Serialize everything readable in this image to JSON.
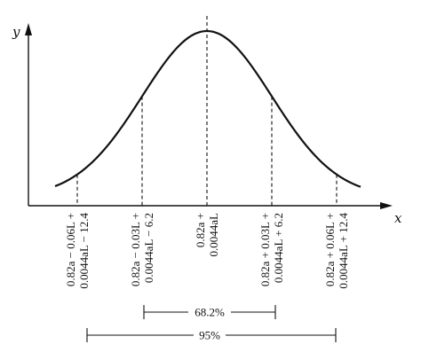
{
  "axes": {
    "y_label": "y",
    "x_label": "x"
  },
  "tick_labels": [
    {
      "line1": "0.82a − 0.06L +",
      "line2": "0.0044aL − 12.4"
    },
    {
      "line1": "0.82a − 0.03L +",
      "line2": "0.0044aL − 6.2"
    },
    {
      "line1": "0.82a +",
      "line2": "0.0044aL"
    },
    {
      "line1": "0.82a + 0.03L +",
      "line2": "0.0044aL + 6.2"
    },
    {
      "line1": "0.82a + 0.06L +",
      "line2": "0.0044aL + 12.4"
    }
  ],
  "intervals": [
    {
      "label": "68.2%",
      "from_sd": -1,
      "to_sd": 1
    },
    {
      "label": "95%",
      "from_sd": -2,
      "to_sd": 2
    }
  ]
}
